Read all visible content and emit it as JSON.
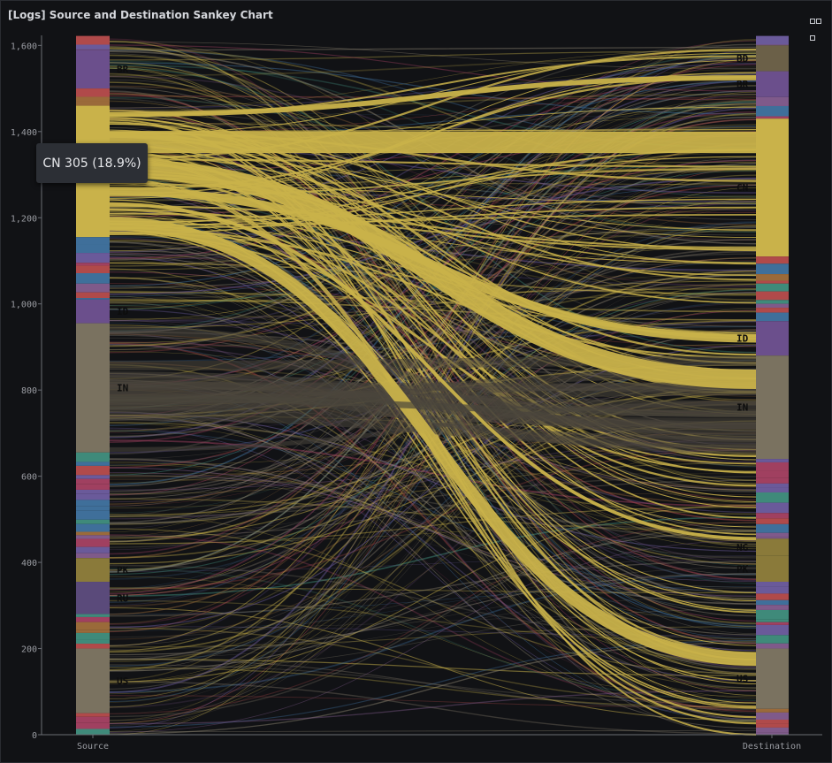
{
  "panel": {
    "title": "[Logs] Source and Destination Sankey Chart",
    "menu_icon": "more-options-icon"
  },
  "tooltip": {
    "text": "CN 305 (18.9%)"
  },
  "chart_data": {
    "type": "sankey",
    "ylim": [
      0,
      1620
    ],
    "y_ticks": [
      "0",
      "200",
      "400",
      "600",
      "800",
      "1,000",
      "1,200",
      "1,400",
      "1,600"
    ],
    "y_tick_values": [
      0,
      200,
      400,
      600,
      800,
      1000,
      1200,
      1400,
      1600
    ],
    "axis_labels": [
      "Source",
      "Destination"
    ],
    "grid": false,
    "colors": {
      "CN": "#c9b24a",
      "IN": "#7a7260",
      "ID": "#6b4f8c",
      "BR": "#6b4f8c",
      "US": "#7a7260",
      "PK": "#8a7a3a",
      "RU": "#5a4a7a",
      "NG": "#8a7a3a",
      "BD": "#6b6048",
      "other_palette": [
        "#b04a4a",
        "#3f6f9a",
        "#7f5a8a",
        "#9a6a3a",
        "#3f8a7a",
        "#a04060",
        "#6a5a9a"
      ]
    },
    "source_nodes": [
      {
        "label": "",
        "start": 1590,
        "end": 1622
      },
      {
        "label": "BR",
        "start": 1500,
        "end": 1590
      },
      {
        "label": "",
        "start": 1460,
        "end": 1500
      },
      {
        "label": "CN",
        "start": 1155,
        "end": 1460
      },
      {
        "label": "",
        "start": 1010,
        "end": 1155
      },
      {
        "label": "ID",
        "start": 955,
        "end": 1010
      },
      {
        "label": "IN",
        "start": 655,
        "end": 955
      },
      {
        "label": "",
        "start": 410,
        "end": 655
      },
      {
        "label": "PK",
        "start": 355,
        "end": 410
      },
      {
        "label": "RU",
        "start": 280,
        "end": 355
      },
      {
        "label": "",
        "start": 200,
        "end": 280
      },
      {
        "label": "US",
        "start": 50,
        "end": 200
      },
      {
        "label": "",
        "start": 0,
        "end": 50
      }
    ],
    "destination_nodes": [
      {
        "label": "",
        "start": 1600,
        "end": 1622
      },
      {
        "label": "BD",
        "start": 1540,
        "end": 1600
      },
      {
        "label": "BR",
        "start": 1480,
        "end": 1540
      },
      {
        "label": "",
        "start": 1430,
        "end": 1480
      },
      {
        "label": "CN",
        "start": 1110,
        "end": 1430
      },
      {
        "label": "",
        "start": 960,
        "end": 1110
      },
      {
        "label": "ID",
        "start": 880,
        "end": 960
      },
      {
        "label": "IN",
        "start": 640,
        "end": 880
      },
      {
        "label": "",
        "start": 455,
        "end": 640
      },
      {
        "label": "NG",
        "start": 415,
        "end": 455
      },
      {
        "label": "PK",
        "start": 355,
        "end": 415
      },
      {
        "label": "",
        "start": 200,
        "end": 355
      },
      {
        "label": "US",
        "start": 60,
        "end": 200
      },
      {
        "label": "",
        "start": 0,
        "end": 60
      }
    ],
    "major_flows": [
      {
        "from": "CN",
        "to": "CN",
        "value": 50,
        "src_y": 1375,
        "dst_y": 1375
      },
      {
        "from": "CN",
        "to": "IN",
        "value": 45,
        "src_y": 1315,
        "dst_y": 825
      },
      {
        "from": "CN",
        "to": "ID",
        "value": 20,
        "src_y": 1262,
        "dst_y": 920
      },
      {
        "from": "CN",
        "to": "US",
        "value": 30,
        "src_y": 1185,
        "dst_y": 175
      },
      {
        "from": "CN",
        "to": "BR",
        "value": 12,
        "src_y": 1440,
        "dst_y": 1525
      },
      {
        "from": "CN",
        "to": "NG",
        "value": 8,
        "src_y": 1232,
        "dst_y": 455
      },
      {
        "from": "IN",
        "to": "IN",
        "value": 15,
        "src_y": 780,
        "dst_y": 745
      }
    ]
  }
}
